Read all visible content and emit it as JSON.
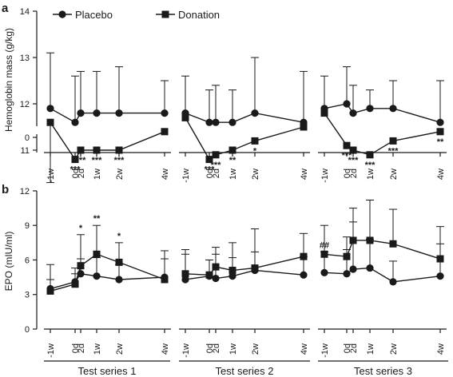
{
  "chart_data": [
    {
      "type": "line",
      "panel_label": "a",
      "ylabel": "Hemoglobin mass (g/kg)",
      "ylim": [
        0,
        14
      ],
      "yaxis_break_between": [
        0,
        10
      ],
      "yticks": [
        "0",
        "11",
        "12",
        "13",
        "14"
      ],
      "x_tick_labels": [
        "-1w",
        "0d",
        "2d",
        "1w",
        "2w",
        "4w"
      ],
      "legend": {
        "placement": "top-left",
        "entries": [
          "Placebo",
          "Donation"
        ]
      },
      "groups": [
        {
          "name": "Test series 1",
          "series": [
            {
              "name": "Placebo",
              "marker": "circle",
              "values": [
                11.9,
                11.6,
                11.8,
                11.8,
                11.8,
                11.8
              ],
              "error_upper": [
                13.1,
                12.6,
                12.7,
                12.7,
                12.8,
                12.5
              ]
            },
            {
              "name": "Donation",
              "marker": "square",
              "values": [
                11.6,
                10.8,
                11.0,
                11.0,
                11.0,
                11.4
              ],
              "error_lower": [
                10.3,
                null,
                null,
                null,
                null,
                null
              ]
            }
          ],
          "annotations": [
            {
              "series": "Donation",
              "point": 1,
              "text": "***"
            },
            {
              "series": "Donation",
              "point": 2,
              "text": "***"
            },
            {
              "series": "Donation",
              "point": 3,
              "text": "***"
            },
            {
              "series": "Donation",
              "point": 4,
              "text": "***"
            }
          ]
        },
        {
          "name": "Test series 2",
          "series": [
            {
              "name": "Placebo",
              "marker": "circle",
              "values": [
                11.8,
                11.6,
                11.6,
                11.6,
                11.8,
                11.6
              ],
              "error_upper": [
                12.6,
                12.3,
                12.4,
                12.3,
                13.0,
                12.7
              ]
            },
            {
              "name": "Donation",
              "marker": "square",
              "values": [
                11.7,
                10.8,
                10.9,
                11.0,
                11.2,
                11.5
              ]
            }
          ],
          "annotations": [
            {
              "series": "Donation",
              "point": 1,
              "text": "***"
            },
            {
              "series": "Donation",
              "point": 2,
              "text": "***"
            },
            {
              "series": "Donation",
              "point": 3,
              "text": "**"
            },
            {
              "series": "Donation",
              "point": 4,
              "text": "*"
            }
          ]
        },
        {
          "name": "Test series 3",
          "series": [
            {
              "name": "Placebo",
              "marker": "circle",
              "values": [
                11.9,
                12.0,
                11.8,
                11.9,
                11.9,
                11.6
              ],
              "error_upper": [
                12.6,
                12.8,
                12.4,
                12.3,
                12.5,
                12.5
              ]
            },
            {
              "name": "Donation",
              "marker": "square",
              "values": [
                11.8,
                11.1,
                11.0,
                10.9,
                11.2,
                11.4
              ]
            }
          ],
          "annotations": [
            {
              "series": "Donation",
              "point": 1,
              "text": "***"
            },
            {
              "series": "Donation",
              "point": 2,
              "text": "***"
            },
            {
              "series": "Donation",
              "point": 3,
              "text": "***"
            },
            {
              "series": "Donation",
              "point": 4,
              "text": "***"
            },
            {
              "series": "Donation",
              "point": 5,
              "text": "**"
            }
          ]
        }
      ]
    },
    {
      "type": "line",
      "panel_label": "b",
      "ylabel": "EPO (mIU/ml)",
      "ylim": [
        0,
        12
      ],
      "yticks": [
        "0",
        "3",
        "6",
        "9",
        "12"
      ],
      "x_tick_labels": [
        "-1w",
        "0d",
        "2d",
        "1w",
        "2w",
        "4w"
      ],
      "groups": [
        {
          "name": "Test series 1",
          "series": [
            {
              "name": "Placebo",
              "marker": "circle",
              "values": [
                3.5,
                4.1,
                4.8,
                4.6,
                4.3,
                4.5
              ],
              "error_upper": [
                5.6,
                5.3,
                6.1,
                6.2,
                5.6,
                6.1
              ]
            },
            {
              "name": "Donation",
              "marker": "square",
              "values": [
                3.3,
                3.9,
                5.5,
                6.5,
                5.8,
                4.3
              ],
              "error_upper": [
                4.3,
                4.8,
                8.2,
                9.0,
                7.5,
                6.8
              ]
            }
          ],
          "annotations": [
            {
              "series": "Donation",
              "point": 2,
              "text": "*"
            },
            {
              "series": "Donation",
              "point": 3,
              "text": "**"
            },
            {
              "series": "Donation",
              "point": 4,
              "text": "*"
            }
          ]
        },
        {
          "name": "Test series 2",
          "series": [
            {
              "name": "Placebo",
              "marker": "circle",
              "values": [
                4.3,
                4.6,
                4.4,
                4.6,
                5.1,
                4.7
              ],
              "error_upper": [
                6.5,
                6.0,
                6.5,
                6.2,
                6.7,
                6.3
              ]
            },
            {
              "name": "Donation",
              "marker": "square",
              "values": [
                4.8,
                4.7,
                5.4,
                5.1,
                5.3,
                6.3
              ],
              "error_upper": [
                6.9,
                6.0,
                7.1,
                7.5,
                8.7,
                8.3
              ]
            }
          ],
          "annotations": []
        },
        {
          "name": "Test series 3",
          "series": [
            {
              "name": "Placebo",
              "marker": "circle",
              "values": [
                4.9,
                4.8,
                5.2,
                5.3,
                4.1,
                4.6
              ],
              "error_upper": [
                6.7,
                6.9,
                9.3,
                7.8,
                5.9,
                7.4
              ]
            },
            {
              "name": "Donation",
              "marker": "square",
              "values": [
                6.5,
                6.3,
                7.7,
                7.7,
                7.4,
                6.1
              ],
              "error_upper": [
                9.0,
                8.0,
                10.5,
                11.2,
                10.4,
                8.9
              ]
            }
          ],
          "annotations": [
            {
              "series": "Placebo",
              "point": 0,
              "text": "##"
            }
          ]
        }
      ]
    }
  ],
  "series_labels": [
    "Test series 1",
    "Test series 2",
    "Test series 3"
  ]
}
